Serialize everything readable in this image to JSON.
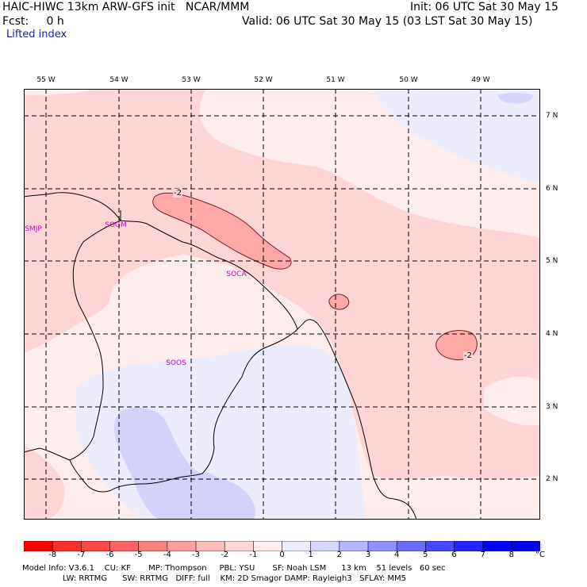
{
  "header": {
    "line1_left": "HAIC-HIWC 13km ARW-GFS init   NCAR/MMM",
    "line1_right": "Init: 06 UTC Sat 30 May 15",
    "line2_left": "Fcst:     0 h",
    "line2_right": "Valid: 06 UTC Sat 30 May 15 (03 LST Sat 30 May 15)",
    "field": "Lifted index"
  },
  "map": {
    "lon_labels": [
      "55 W",
      "54 W",
      "53 W",
      "52 W",
      "51 W",
      "50 W",
      "49 W"
    ],
    "lat_labels": [
      "7 N",
      "6 N",
      "5 N",
      "4 N",
      "3 N",
      "2 N"
    ],
    "stations": [
      "SMJP",
      "SOGM",
      "SOCA",
      "SOOS"
    ],
    "contour_labels": [
      "-2",
      "-2"
    ]
  },
  "colorbar": {
    "ticks": [
      "-8",
      "-7",
      "-6",
      "-5",
      "-4",
      "-3",
      "-2",
      "-1",
      "0",
      "1",
      "2",
      "3",
      "4",
      "5",
      "6",
      "7",
      "8"
    ],
    "unit": "°C",
    "colors": [
      "#ff0000",
      "#ff2e2e",
      "#ff4848",
      "#ff6464",
      "#ff8282",
      "#ffa0a0",
      "#ffbcbc",
      "#ffd6d6",
      "#ffecec",
      "#ececff",
      "#d6d6ff",
      "#b4b4ff",
      "#9090ff",
      "#6c6cff",
      "#4848ff",
      "#2424ff",
      "#0000ff",
      "#0000ee"
    ]
  },
  "footer": {
    "line1": "Model Info: V3.6.1    CU: KF       MP: Thompson     PBL: YSU       SF: Noah LSM      13 km    51 levels   60 sec",
    "line2": "                LW: RRTMG      SW: RRTMG   DIFF: full    KM: 2D Smagor DAMP: Rayleigh3   SFLAY: MM5"
  }
}
